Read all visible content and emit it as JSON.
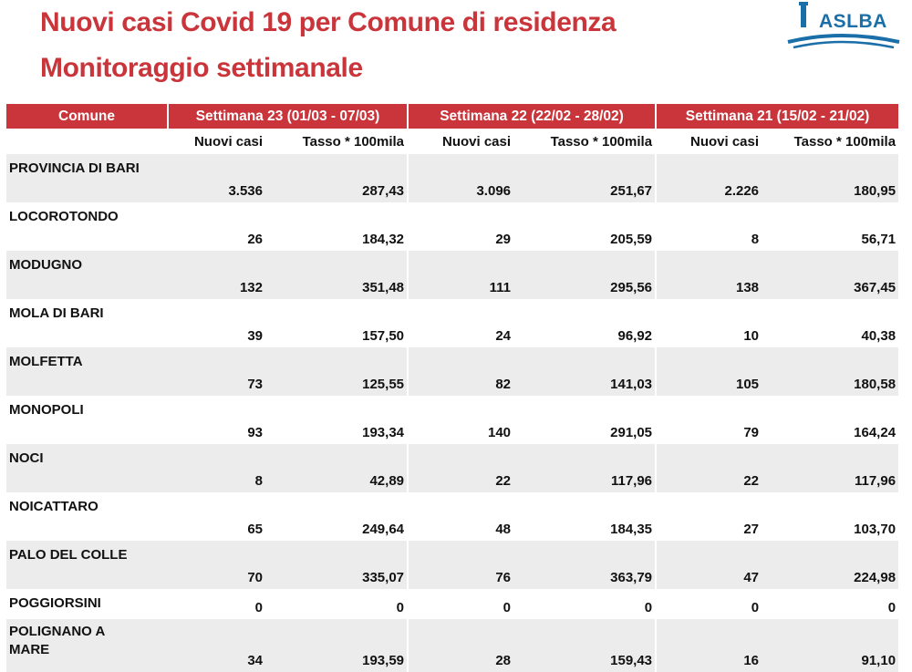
{
  "header": {
    "title_line1": "Nuovi casi Covid 19 per Comune di residenza",
    "title_line2": "Monitoraggio settimanale",
    "logo_text": "ASLBA"
  },
  "colors": {
    "accent": "#c9353a",
    "logo_blue": "#1b6fa8",
    "row_shade": "#ececec"
  },
  "table": {
    "col_comune": "Comune",
    "weeks": [
      "Settimana 23 (01/03 - 07/03)",
      "Settimana 22 (22/02 - 28/02)",
      "Settimana 21 (15/02 - 21/02)"
    ],
    "sub_casi": "Nuovi casi",
    "sub_tasso": "Tasso * 100mila",
    "rows": [
      {
        "name": "PROVINCIA DI BARI",
        "v": [
          "3.536",
          "287,43",
          "3.096",
          "251,67",
          "2.226",
          "180,95"
        ]
      },
      {
        "name": "LOCOROTONDO",
        "v": [
          "26",
          "184,32",
          "29",
          "205,59",
          "8",
          "56,71"
        ]
      },
      {
        "name": "MODUGNO",
        "v": [
          "132",
          "351,48",
          "111",
          "295,56",
          "138",
          "367,45"
        ]
      },
      {
        "name": "MOLA DI BARI",
        "v": [
          "39",
          "157,50",
          "24",
          "96,92",
          "10",
          "40,38"
        ]
      },
      {
        "name": "MOLFETTA",
        "v": [
          "73",
          "125,55",
          "82",
          "141,03",
          "105",
          "180,58"
        ]
      },
      {
        "name": "MONOPOLI",
        "v": [
          "93",
          "193,34",
          "140",
          "291,05",
          "79",
          "164,24"
        ]
      },
      {
        "name": "NOCI",
        "v": [
          "8",
          "42,89",
          "22",
          "117,96",
          "22",
          "117,96"
        ]
      },
      {
        "name": "NOICATTARO",
        "v": [
          "65",
          "249,64",
          "48",
          "184,35",
          "27",
          "103,70"
        ]
      },
      {
        "name": "PALO DEL COLLE",
        "v": [
          "70",
          "335,07",
          "76",
          "363,79",
          "47",
          "224,98"
        ]
      },
      {
        "name": "POGGIORSINI",
        "v": [
          "0",
          "0",
          "0",
          "0",
          "0",
          "0"
        ]
      },
      {
        "name": "POLIGNANO A\nMARE",
        "v": [
          "34",
          "193,59",
          "28",
          "159,43",
          "16",
          "91,10"
        ]
      }
    ]
  }
}
